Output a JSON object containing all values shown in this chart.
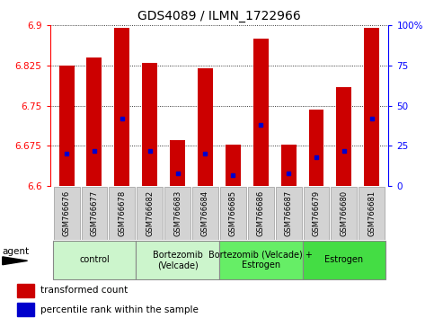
{
  "title": "GDS4089 / ILMN_1722966",
  "samples": [
    "GSM766676",
    "GSM766677",
    "GSM766678",
    "GSM766682",
    "GSM766683",
    "GSM766684",
    "GSM766685",
    "GSM766686",
    "GSM766687",
    "GSM766679",
    "GSM766680",
    "GSM766681"
  ],
  "bar_values": [
    6.825,
    6.84,
    6.895,
    6.83,
    6.685,
    6.82,
    6.678,
    6.875,
    6.678,
    6.742,
    6.785,
    6.895
  ],
  "percentile_values": [
    20,
    22,
    42,
    22,
    8,
    20,
    7,
    38,
    8,
    18,
    22,
    42
  ],
  "ymin": 6.6,
  "ymax": 6.9,
  "yticks": [
    6.6,
    6.675,
    6.75,
    6.825,
    6.9
  ],
  "ytick_labels": [
    "6.6",
    "6.675",
    "6.75",
    "6.825",
    "6.9"
  ],
  "bar_color": "#cc0000",
  "dot_color": "#0000cc",
  "groups": [
    {
      "label": "control",
      "start": 0,
      "end": 3,
      "color": "#ccf5cc"
    },
    {
      "label": "Bortezomib\n(Velcade)",
      "start": 3,
      "end": 6,
      "color": "#ccf5cc"
    },
    {
      "label": "Bortezomib (Velcade) +\nEstrogen",
      "start": 6,
      "end": 9,
      "color": "#66ee66"
    },
    {
      "label": "Estrogen",
      "start": 9,
      "end": 12,
      "color": "#44dd44"
    }
  ],
  "legend_red_label": "transformed count",
  "legend_blue_label": "percentile rank within the sample",
  "agent_label": "agent",
  "right_yticks": [
    0,
    25,
    50,
    75,
    100
  ],
  "right_ytick_labels": [
    "0",
    "25",
    "50",
    "75",
    "100%"
  ]
}
